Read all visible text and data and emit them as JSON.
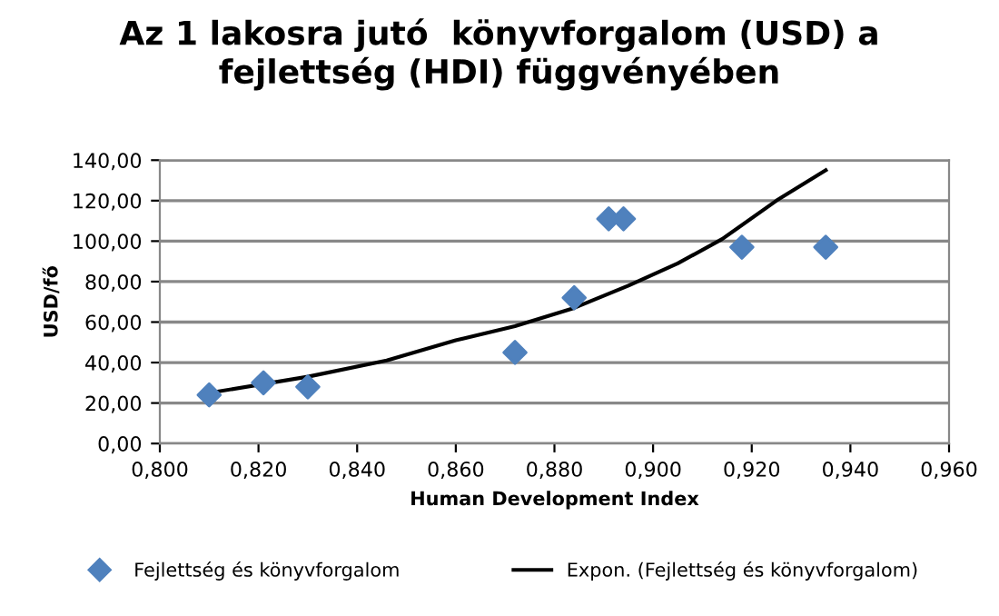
{
  "chart_data": {
    "type": "scatter",
    "title": "Az 1 lakosra jutó  könyvforgalom (USD) a\nfejlettség (HDI) függvényében",
    "xlabel": "Human Development Index",
    "ylabel": "USD/fő",
    "series": [
      {
        "name": "Fejlettség és könyvforgalom",
        "color": "#4f81bd",
        "marker": "diamond",
        "x": [
          0.81,
          0.821,
          0.83,
          0.872,
          0.884,
          0.891,
          0.894,
          0.918,
          0.935
        ],
        "values": [
          24,
          30,
          28,
          45,
          72,
          111,
          111,
          97,
          97
        ]
      },
      {
        "name": "Expon. (Fejlettség és könyvforgalom)",
        "color": "#000000",
        "type": "line",
        "marker": "none",
        "x": [
          0.81,
          0.83,
          0.846,
          0.86,
          0.872,
          0.884,
          0.895,
          0.905,
          0.914,
          0.925,
          0.935
        ],
        "values": [
          25,
          33,
          41,
          51,
          58,
          67,
          78,
          89,
          101,
          120,
          135
        ]
      }
    ],
    "xlim": [
      0.8,
      0.96
    ],
    "xticks": [
      {
        "value": 0.8,
        "label": "0,800"
      },
      {
        "value": 0.82,
        "label": "0,820"
      },
      {
        "value": 0.84,
        "label": "0,840"
      },
      {
        "value": 0.86,
        "label": "0,860"
      },
      {
        "value": 0.88,
        "label": "0,880"
      },
      {
        "value": 0.9,
        "label": "0,900"
      },
      {
        "value": 0.92,
        "label": "0,920"
      },
      {
        "value": 0.94,
        "label": "0,940"
      },
      {
        "value": 0.96,
        "label": "0,960"
      }
    ],
    "ylim": [
      0,
      140
    ],
    "yticks": [
      {
        "value": 0,
        "label": "0,00"
      },
      {
        "value": 20,
        "label": "20,00"
      },
      {
        "value": 40,
        "label": "40,00"
      },
      {
        "value": 60,
        "label": "60,00"
      },
      {
        "value": 80,
        "label": "80,00"
      },
      {
        "value": 100,
        "label": "100,00"
      },
      {
        "value": 120,
        "label": "120,00"
      },
      {
        "value": 140,
        "label": "140,00"
      }
    ],
    "grid": "y",
    "legend": "bottom",
    "line_style": "solid"
  }
}
